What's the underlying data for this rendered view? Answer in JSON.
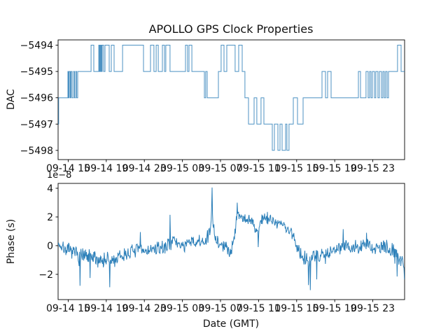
{
  "figure": {
    "background": "#ffffff",
    "line_color": "#1f77b4",
    "text_color": "#111111",
    "spine_color": "#000000"
  },
  "chart_data": [
    {
      "type": "line",
      "subtype": "step",
      "title": "APOLLO GPS Clock Properties",
      "ylabel": "DAC",
      "xlabel": "",
      "x_unit": "hours since 09-14 00:00 GMT",
      "xlim": [
        13.94,
        50.34
      ],
      "ylim": [
        -5498.35,
        -5493.8
      ],
      "xticks": [
        15,
        19,
        23,
        27,
        31,
        35,
        39,
        43,
        47
      ],
      "xtick_labels": [
        "09-14 15",
        "09-14 19",
        "09-14 23",
        "09-15 03",
        "09-15 07",
        "09-15 11",
        "09-15 15",
        "09-15 19",
        "09-15 23"
      ],
      "yticks": [
        -5494,
        -5495,
        -5496,
        -5497,
        -5498
      ],
      "ytick_labels": [
        "−5494",
        "−5495",
        "−5496",
        "−5497",
        "−5498"
      ],
      "grid": false,
      "legend": "none",
      "steps": [
        [
          13.94,
          -5497
        ],
        [
          14.0,
          -5496
        ],
        [
          14.97,
          -5495
        ],
        [
          15.04,
          -5496
        ],
        [
          15.12,
          -5495
        ],
        [
          15.23,
          -5496
        ],
        [
          15.3,
          -5495
        ],
        [
          15.41,
          -5496
        ],
        [
          15.56,
          -5495
        ],
        [
          15.67,
          -5496
        ],
        [
          15.78,
          -5495
        ],
        [
          15.89,
          -5496
        ],
        [
          16.0,
          -5495
        ],
        [
          17.4,
          -5494
        ],
        [
          17.69,
          -5495
        ],
        [
          18.21,
          -5494
        ],
        [
          18.28,
          -5495
        ],
        [
          18.34,
          -5494
        ],
        [
          18.4,
          -5495
        ],
        [
          18.46,
          -5494
        ],
        [
          18.51,
          -5495
        ],
        [
          18.57,
          -5494
        ],
        [
          18.72,
          -5495
        ],
        [
          18.87,
          -5494
        ],
        [
          19.31,
          -5495
        ],
        [
          19.53,
          -5494
        ],
        [
          19.82,
          -5495
        ],
        [
          20.71,
          -5494
        ],
        [
          22.91,
          -5495
        ],
        [
          23.65,
          -5494
        ],
        [
          24.01,
          -5495
        ],
        [
          24.24,
          -5494
        ],
        [
          24.46,
          -5495
        ],
        [
          24.9,
          -5494
        ],
        [
          25.12,
          -5495
        ],
        [
          25.26,
          -5494
        ],
        [
          25.7,
          -5495
        ],
        [
          27.32,
          -5494
        ],
        [
          27.54,
          -5495
        ],
        [
          27.69,
          -5494
        ],
        [
          27.99,
          -5495
        ],
        [
          29.31,
          -5496
        ],
        [
          29.45,
          -5495
        ],
        [
          29.6,
          -5496
        ],
        [
          30.78,
          -5495
        ],
        [
          31.07,
          -5494
        ],
        [
          31.37,
          -5495
        ],
        [
          31.66,
          -5494
        ],
        [
          32.54,
          -5495
        ],
        [
          32.91,
          -5494
        ],
        [
          33.28,
          -5495
        ],
        [
          33.57,
          -5496
        ],
        [
          33.94,
          -5497
        ],
        [
          34.53,
          -5496
        ],
        [
          34.82,
          -5497
        ],
        [
          35.26,
          -5496
        ],
        [
          35.56,
          -5497
        ],
        [
          36.44,
          -5498
        ],
        [
          36.66,
          -5497
        ],
        [
          37.03,
          -5498
        ],
        [
          37.25,
          -5497
        ],
        [
          37.47,
          -5498
        ],
        [
          37.84,
          -5497
        ],
        [
          37.98,
          -5498
        ],
        [
          38.2,
          -5497
        ],
        [
          38.65,
          -5496
        ],
        [
          39.09,
          -5497
        ],
        [
          39.68,
          -5496
        ],
        [
          41.66,
          -5495
        ],
        [
          42.03,
          -5496
        ],
        [
          42.25,
          -5495
        ],
        [
          42.62,
          -5496
        ],
        [
          45.49,
          -5495
        ],
        [
          45.71,
          -5496
        ],
        [
          46.29,
          -5495
        ],
        [
          46.51,
          -5496
        ],
        [
          46.66,
          -5495
        ],
        [
          46.81,
          -5496
        ],
        [
          46.96,
          -5495
        ],
        [
          47.18,
          -5496
        ],
        [
          47.32,
          -5495
        ],
        [
          47.54,
          -5496
        ],
        [
          47.69,
          -5495
        ],
        [
          47.91,
          -5496
        ],
        [
          48.06,
          -5495
        ],
        [
          48.21,
          -5496
        ],
        [
          48.35,
          -5495
        ],
        [
          48.5,
          -5496
        ],
        [
          48.65,
          -5495
        ],
        [
          49.6,
          -5494
        ],
        [
          49.97,
          -5495
        ],
        [
          50.34,
          -5495
        ]
      ]
    },
    {
      "type": "line",
      "subtype": "noisy",
      "title": "",
      "ylabel": "Phase (s)",
      "xlabel": "Date (GMT)",
      "offset_text": "1e−8",
      "y_unit": "1e-8 s",
      "x_unit": "hours since 09-14 00:00 GMT",
      "xlim": [
        13.94,
        50.34
      ],
      "ylim": [
        -3.76,
        4.34
      ],
      "xticks": [
        15,
        19,
        23,
        27,
        31,
        35,
        39,
        43,
        47
      ],
      "xtick_labels": [
        "09-14 15",
        "09-14 19",
        "09-14 23",
        "09-15 03",
        "09-15 07",
        "09-15 11",
        "09-15 15",
        "09-15 19",
        "09-15 23"
      ],
      "yticks": [
        4,
        2,
        0,
        -2
      ],
      "ytick_labels": [
        "4",
        "2",
        "0",
        "−2"
      ],
      "grid": false,
      "legend": "none",
      "noise_seed": 7,
      "sample_step": 0.048,
      "profile": [
        [
          13.94,
          0.2,
          0.45
        ],
        [
          14.3,
          -0.1,
          0.5
        ],
        [
          15.0,
          -0.35,
          0.55
        ],
        [
          15.8,
          -0.55,
          0.6
        ],
        [
          16.2,
          -0.7,
          0.75
        ],
        [
          17.0,
          -0.85,
          0.7
        ],
        [
          18.0,
          -0.95,
          0.7
        ],
        [
          19.0,
          -1.0,
          0.7
        ],
        [
          19.6,
          -1.1,
          0.75
        ],
        [
          20.5,
          -0.8,
          0.6
        ],
        [
          21.5,
          -0.45,
          0.55
        ],
        [
          22.3,
          -0.3,
          0.55
        ],
        [
          23.2,
          -0.35,
          0.5
        ],
        [
          24.2,
          -0.25,
          0.55
        ],
        [
          25.3,
          -0.1,
          0.5
        ],
        [
          25.8,
          0.45,
          0.7
        ],
        [
          26.3,
          0.2,
          0.5
        ],
        [
          27.2,
          0.0,
          0.5
        ],
        [
          28.0,
          0.25,
          0.55
        ],
        [
          28.8,
          0.2,
          0.55
        ],
        [
          29.5,
          0.3,
          0.6
        ],
        [
          30.0,
          1.1,
          1.0
        ],
        [
          30.12,
          2.4,
          1.1
        ],
        [
          30.35,
          0.8,
          0.7
        ],
        [
          30.9,
          0.1,
          0.6
        ],
        [
          31.6,
          -0.2,
          0.55
        ],
        [
          32.2,
          -0.3,
          0.5
        ],
        [
          32.45,
          0.8,
          0.7
        ],
        [
          32.75,
          2.4,
          0.5
        ],
        [
          33.1,
          2.0,
          0.5
        ],
        [
          33.6,
          1.9,
          0.5
        ],
        [
          34.2,
          1.75,
          0.55
        ],
        [
          34.9,
          0.9,
          0.65
        ],
        [
          35.3,
          1.85,
          0.5
        ],
        [
          35.9,
          2.0,
          0.5
        ],
        [
          36.6,
          1.7,
          0.5
        ],
        [
          37.4,
          1.5,
          0.55
        ],
        [
          38.2,
          1.1,
          0.6
        ],
        [
          38.8,
          0.4,
          0.6
        ],
        [
          39.4,
          -0.6,
          0.65
        ],
        [
          40.2,
          -0.9,
          0.7
        ],
        [
          41.0,
          -0.8,
          0.7
        ],
        [
          41.8,
          -0.6,
          0.65
        ],
        [
          42.6,
          -0.4,
          0.55
        ],
        [
          43.4,
          -0.1,
          0.6
        ],
        [
          43.9,
          0.2,
          0.65
        ],
        [
          44.6,
          -0.2,
          0.55
        ],
        [
          45.6,
          -0.15,
          0.6
        ],
        [
          46.4,
          0.05,
          0.6
        ],
        [
          47.2,
          -0.2,
          0.6
        ],
        [
          48.0,
          -0.15,
          0.55
        ],
        [
          48.8,
          -0.3,
          0.6
        ],
        [
          49.5,
          -0.5,
          0.7
        ],
        [
          50.0,
          -0.9,
          0.75
        ],
        [
          50.34,
          -1.3,
          0.75
        ]
      ],
      "spikes": [
        [
          16.25,
          -2.8
        ],
        [
          17.3,
          -2.25
        ],
        [
          19.35,
          -2.9
        ],
        [
          22.6,
          0.95
        ],
        [
          25.72,
          2.15
        ],
        [
          30.08,
          2.6
        ],
        [
          30.12,
          4.05
        ],
        [
          32.76,
          3.0
        ],
        [
          34.95,
          -0.1
        ],
        [
          35.92,
          2.35
        ],
        [
          40.25,
          -2.75
        ],
        [
          40.45,
          -3.1
        ],
        [
          41.1,
          -2.35
        ],
        [
          43.9,
          1.15
        ],
        [
          46.35,
          0.9
        ],
        [
          49.55,
          -2.15
        ],
        [
          50.3,
          -2.35
        ]
      ]
    }
  ]
}
